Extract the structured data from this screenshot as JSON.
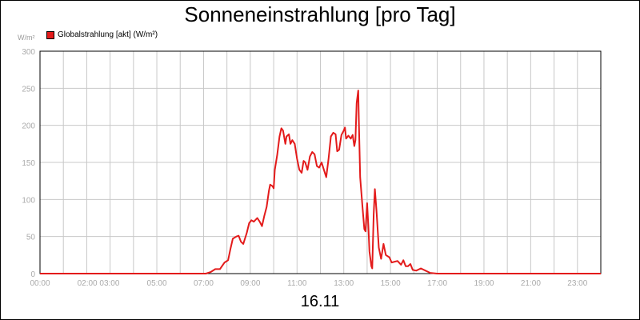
{
  "chart_data": {
    "type": "line",
    "title": "Sonneneinstrahlung [pro Tag]",
    "xlabel": "16.11",
    "ylabel": "W/m²",
    "ylim": [
      0,
      300
    ],
    "xlim": [
      0,
      24
    ],
    "y_ticks": [
      0,
      50,
      100,
      150,
      200,
      250,
      300
    ],
    "x_tick_labels": [
      {
        "h": 0,
        "label": "00:00"
      },
      {
        "h": 2.5,
        "label": "02:00 03:00"
      },
      {
        "h": 5,
        "label": "05:00"
      },
      {
        "h": 7,
        "label": "07:00"
      },
      {
        "h": 9,
        "label": "09:00"
      },
      {
        "h": 11,
        "label": "11:00"
      },
      {
        "h": 13,
        "label": "13:00"
      },
      {
        "h": 15,
        "label": "15:00"
      },
      {
        "h": 17,
        "label": "17:00"
      },
      {
        "h": 19,
        "label": "19:00"
      },
      {
        "h": 21,
        "label": "21:00"
      },
      {
        "h": 23,
        "label": "23:00"
      }
    ],
    "grid": true,
    "legend_position": "top-left",
    "series": [
      {
        "name": "Globalstrahlung [akt] (W/m²)",
        "color": "#e31b1b",
        "points": [
          [
            0,
            0
          ],
          [
            7.1,
            0
          ],
          [
            7.3,
            2
          ],
          [
            7.5,
            6
          ],
          [
            7.7,
            6
          ],
          [
            7.9,
            15
          ],
          [
            8.05,
            18
          ],
          [
            8.15,
            33
          ],
          [
            8.25,
            47
          ],
          [
            8.4,
            50
          ],
          [
            8.5,
            51
          ],
          [
            8.6,
            43
          ],
          [
            8.7,
            40
          ],
          [
            8.85,
            55
          ],
          [
            8.95,
            68
          ],
          [
            9.05,
            72
          ],
          [
            9.15,
            70
          ],
          [
            9.3,
            75
          ],
          [
            9.4,
            70
          ],
          [
            9.5,
            64
          ],
          [
            9.6,
            78
          ],
          [
            9.7,
            90
          ],
          [
            9.8,
            112
          ],
          [
            9.85,
            120
          ],
          [
            9.95,
            118
          ],
          [
            10.0,
            115
          ],
          [
            10.05,
            140
          ],
          [
            10.15,
            160
          ],
          [
            10.25,
            185
          ],
          [
            10.33,
            196
          ],
          [
            10.4,
            193
          ],
          [
            10.5,
            175
          ],
          [
            10.55,
            185
          ],
          [
            10.65,
            188
          ],
          [
            10.72,
            175
          ],
          [
            10.8,
            180
          ],
          [
            10.9,
            175
          ],
          [
            11.0,
            155
          ],
          [
            11.1,
            140
          ],
          [
            11.2,
            136
          ],
          [
            11.28,
            152
          ],
          [
            11.35,
            150
          ],
          [
            11.45,
            140
          ],
          [
            11.55,
            158
          ],
          [
            11.65,
            164
          ],
          [
            11.75,
            161
          ],
          [
            11.85,
            145
          ],
          [
            11.95,
            143
          ],
          [
            12.05,
            150
          ],
          [
            12.15,
            140
          ],
          [
            12.25,
            130
          ],
          [
            12.35,
            155
          ],
          [
            12.45,
            185
          ],
          [
            12.55,
            190
          ],
          [
            12.65,
            188
          ],
          [
            12.72,
            165
          ],
          [
            12.8,
            167
          ],
          [
            12.9,
            187
          ],
          [
            13.0,
            193
          ],
          [
            13.05,
            197
          ],
          [
            13.1,
            182
          ],
          [
            13.2,
            186
          ],
          [
            13.3,
            182
          ],
          [
            13.38,
            187
          ],
          [
            13.45,
            172
          ],
          [
            13.5,
            180
          ],
          [
            13.55,
            230
          ],
          [
            13.62,
            247
          ],
          [
            13.65,
            200
          ],
          [
            13.7,
            130
          ],
          [
            13.8,
            90
          ],
          [
            13.88,
            60
          ],
          [
            13.93,
            57
          ],
          [
            14.0,
            95
          ],
          [
            14.05,
            65
          ],
          [
            14.1,
            30
          ],
          [
            14.18,
            10
          ],
          [
            14.22,
            7
          ],
          [
            14.28,
            80
          ],
          [
            14.33,
            114
          ],
          [
            14.4,
            85
          ],
          [
            14.5,
            35
          ],
          [
            14.6,
            20
          ],
          [
            14.7,
            40
          ],
          [
            14.8,
            25
          ],
          [
            14.95,
            22
          ],
          [
            15.05,
            15
          ],
          [
            15.3,
            17
          ],
          [
            15.45,
            12
          ],
          [
            15.55,
            18
          ],
          [
            15.65,
            10
          ],
          [
            15.75,
            10
          ],
          [
            15.85,
            13
          ],
          [
            15.95,
            5
          ],
          [
            16.1,
            4
          ],
          [
            16.3,
            7
          ],
          [
            16.5,
            4
          ],
          [
            16.7,
            1
          ],
          [
            17.0,
            0
          ],
          [
            24,
            0
          ]
        ]
      }
    ]
  }
}
